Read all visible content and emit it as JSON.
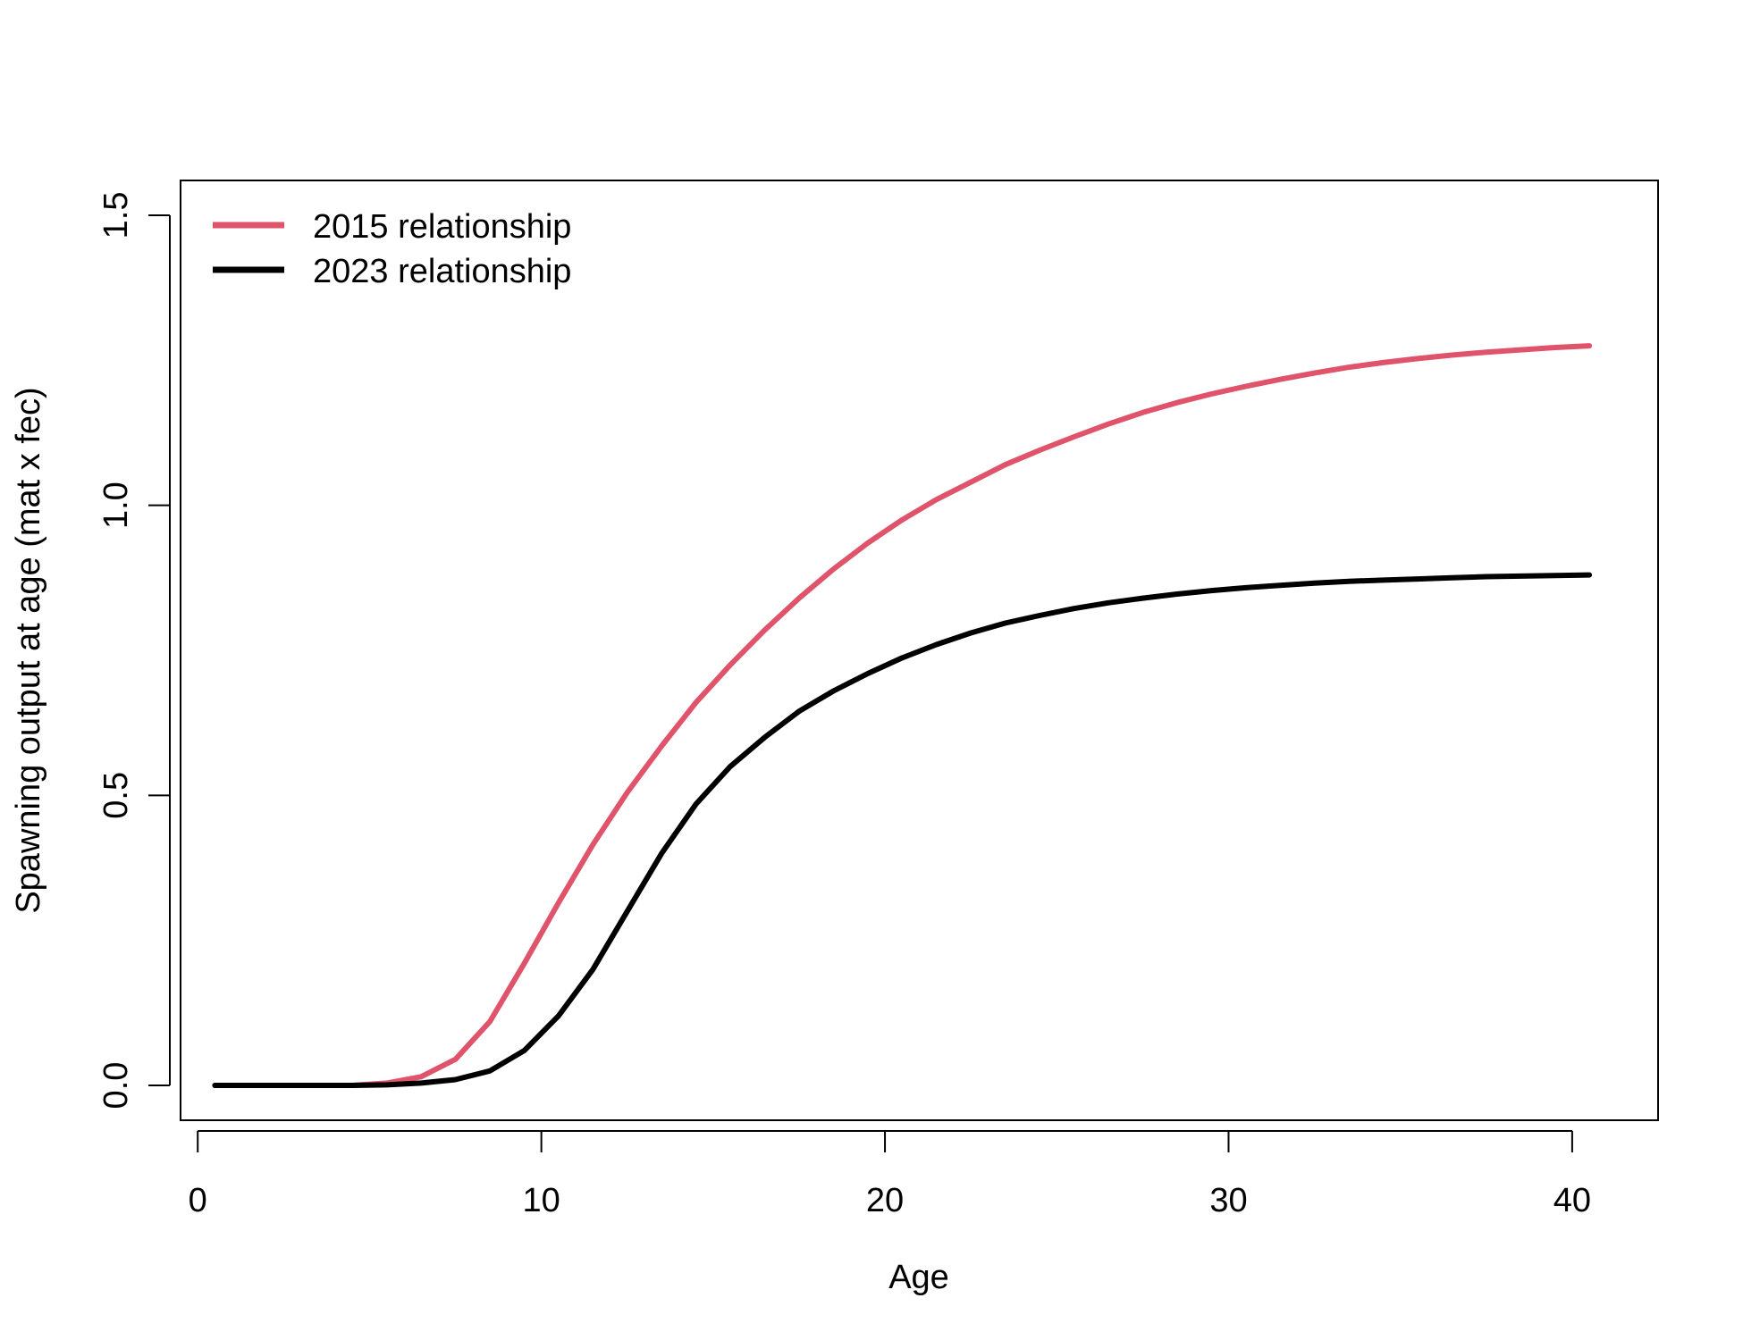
{
  "chart_data": {
    "type": "line",
    "title": "",
    "xlabel": "Age",
    "ylabel": "Spawning output at age (mat x fec)",
    "xlim": [
      -0.5,
      42.5
    ],
    "ylim": [
      -0.06,
      1.56
    ],
    "xticks": [
      0,
      10,
      20,
      30,
      40
    ],
    "xtick_labels": [
      "0",
      "10",
      "20",
      "30",
      "40"
    ],
    "yticks": [
      0.0,
      0.5,
      1.0,
      1.5
    ],
    "ytick_labels": [
      "0.0",
      "0.5",
      "1.0",
      "1.5"
    ],
    "grid": false,
    "legend_position": "top-left",
    "x": [
      0.5,
      1.5,
      2.5,
      3.5,
      4.5,
      5.5,
      6.5,
      7.5,
      8.5,
      9.5,
      10.5,
      11.5,
      12.5,
      13.5,
      14.5,
      15.5,
      16.5,
      17.5,
      18.5,
      19.5,
      20.5,
      21.5,
      22.5,
      23.5,
      24.5,
      25.5,
      26.5,
      27.5,
      28.5,
      29.5,
      30.5,
      31.5,
      32.5,
      33.5,
      34.5,
      35.5,
      36.5,
      37.5,
      38.5,
      39.5,
      40.5
    ],
    "series": [
      {
        "name": "2015 relationship",
        "color": "#DF536B",
        "values": [
          0.0,
          0.0,
          0.0,
          0.0,
          0.0,
          0.004,
          0.015,
          0.045,
          0.11,
          0.21,
          0.315,
          0.415,
          0.505,
          0.585,
          0.66,
          0.725,
          0.785,
          0.84,
          0.89,
          0.935,
          0.975,
          1.01,
          1.04,
          1.07,
          1.095,
          1.118,
          1.14,
          1.16,
          1.177,
          1.192,
          1.205,
          1.217,
          1.228,
          1.238,
          1.246,
          1.253,
          1.259,
          1.264,
          1.268,
          1.272,
          1.275
        ]
      },
      {
        "name": "2023 relationship",
        "color": "#000000",
        "values": [
          0.0,
          0.0,
          0.0,
          0.0,
          0.0,
          0.001,
          0.004,
          0.01,
          0.025,
          0.06,
          0.12,
          0.2,
          0.3,
          0.4,
          0.485,
          0.55,
          0.6,
          0.645,
          0.68,
          0.71,
          0.737,
          0.76,
          0.78,
          0.797,
          0.81,
          0.822,
          0.832,
          0.84,
          0.847,
          0.853,
          0.858,
          0.862,
          0.866,
          0.869,
          0.871,
          0.873,
          0.875,
          0.877,
          0.878,
          0.879,
          0.88
        ]
      }
    ]
  }
}
